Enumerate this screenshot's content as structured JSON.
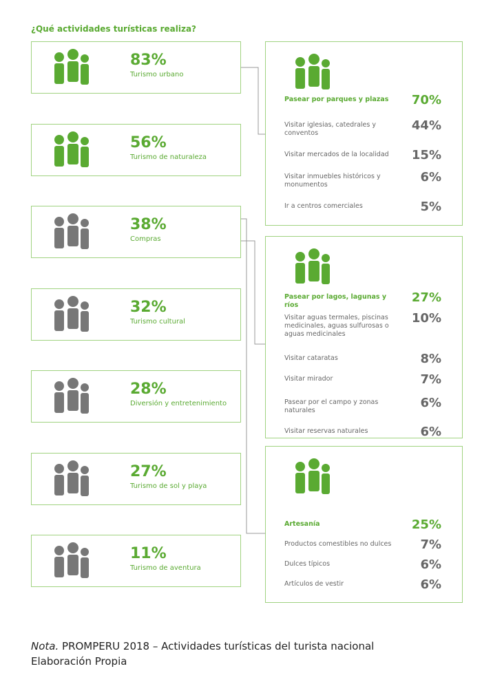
{
  "title": "¿Qué actividades turísticas realiza?",
  "cards": [
    {
      "percent": "83%",
      "label": "Turismo urbano"
    },
    {
      "percent": "56%",
      "label": "Turismo de naturaleza"
    },
    {
      "percent": "38%",
      "label": "Compras"
    },
    {
      "percent": "32%",
      "label": "Turismo cultural"
    },
    {
      "percent": "28%",
      "label": "Diversión y entretenimiento"
    },
    {
      "percent": "27%",
      "label": "Turismo de sol y playa"
    },
    {
      "percent": "11%",
      "label": "Turismo de aventura"
    }
  ],
  "panels": [
    {
      "items": [
        {
          "label": "Pasear por parques y plazas",
          "percent": "70%"
        },
        {
          "label": "Visitar iglesias, catedrales y conventos",
          "percent": "44%"
        },
        {
          "label": "Visitar mercados de la localidad",
          "percent": "15%"
        },
        {
          "label": "Visitar inmuebles históricos y monumentos",
          "percent": "6%"
        },
        {
          "label": "Ir a centros comerciales",
          "percent": "5%"
        }
      ]
    },
    {
      "items": [
        {
          "label": "Pasear por lagos, lagunas y ríos",
          "percent": "27%"
        },
        {
          "label": "Visitar aguas termales, piscinas medicinales, aguas sulfurosas o aguas medicinales",
          "percent": "10%"
        },
        {
          "label": "Visitar cataratas",
          "percent": "8%"
        },
        {
          "label": "Visitar mirador",
          "percent": "7%"
        },
        {
          "label": "Pasear por el campo y zonas naturales",
          "percent": "6%"
        },
        {
          "label": "Visitar reservas naturales",
          "percent": "6%"
        }
      ]
    },
    {
      "items": [
        {
          "label": "Artesanía",
          "percent": "25%"
        },
        {
          "label": "Productos comestibles no dulces",
          "percent": "7%"
        },
        {
          "label": "Dulces típicos",
          "percent": "6%"
        },
        {
          "label": "Artículos de vestir",
          "percent": "6%"
        }
      ]
    }
  ],
  "note": {
    "lead": "Nota.",
    "text": " PROMPERU 2018 – Actividades turísticas del turista nacional",
    "source": "Elaboración Propia"
  }
}
